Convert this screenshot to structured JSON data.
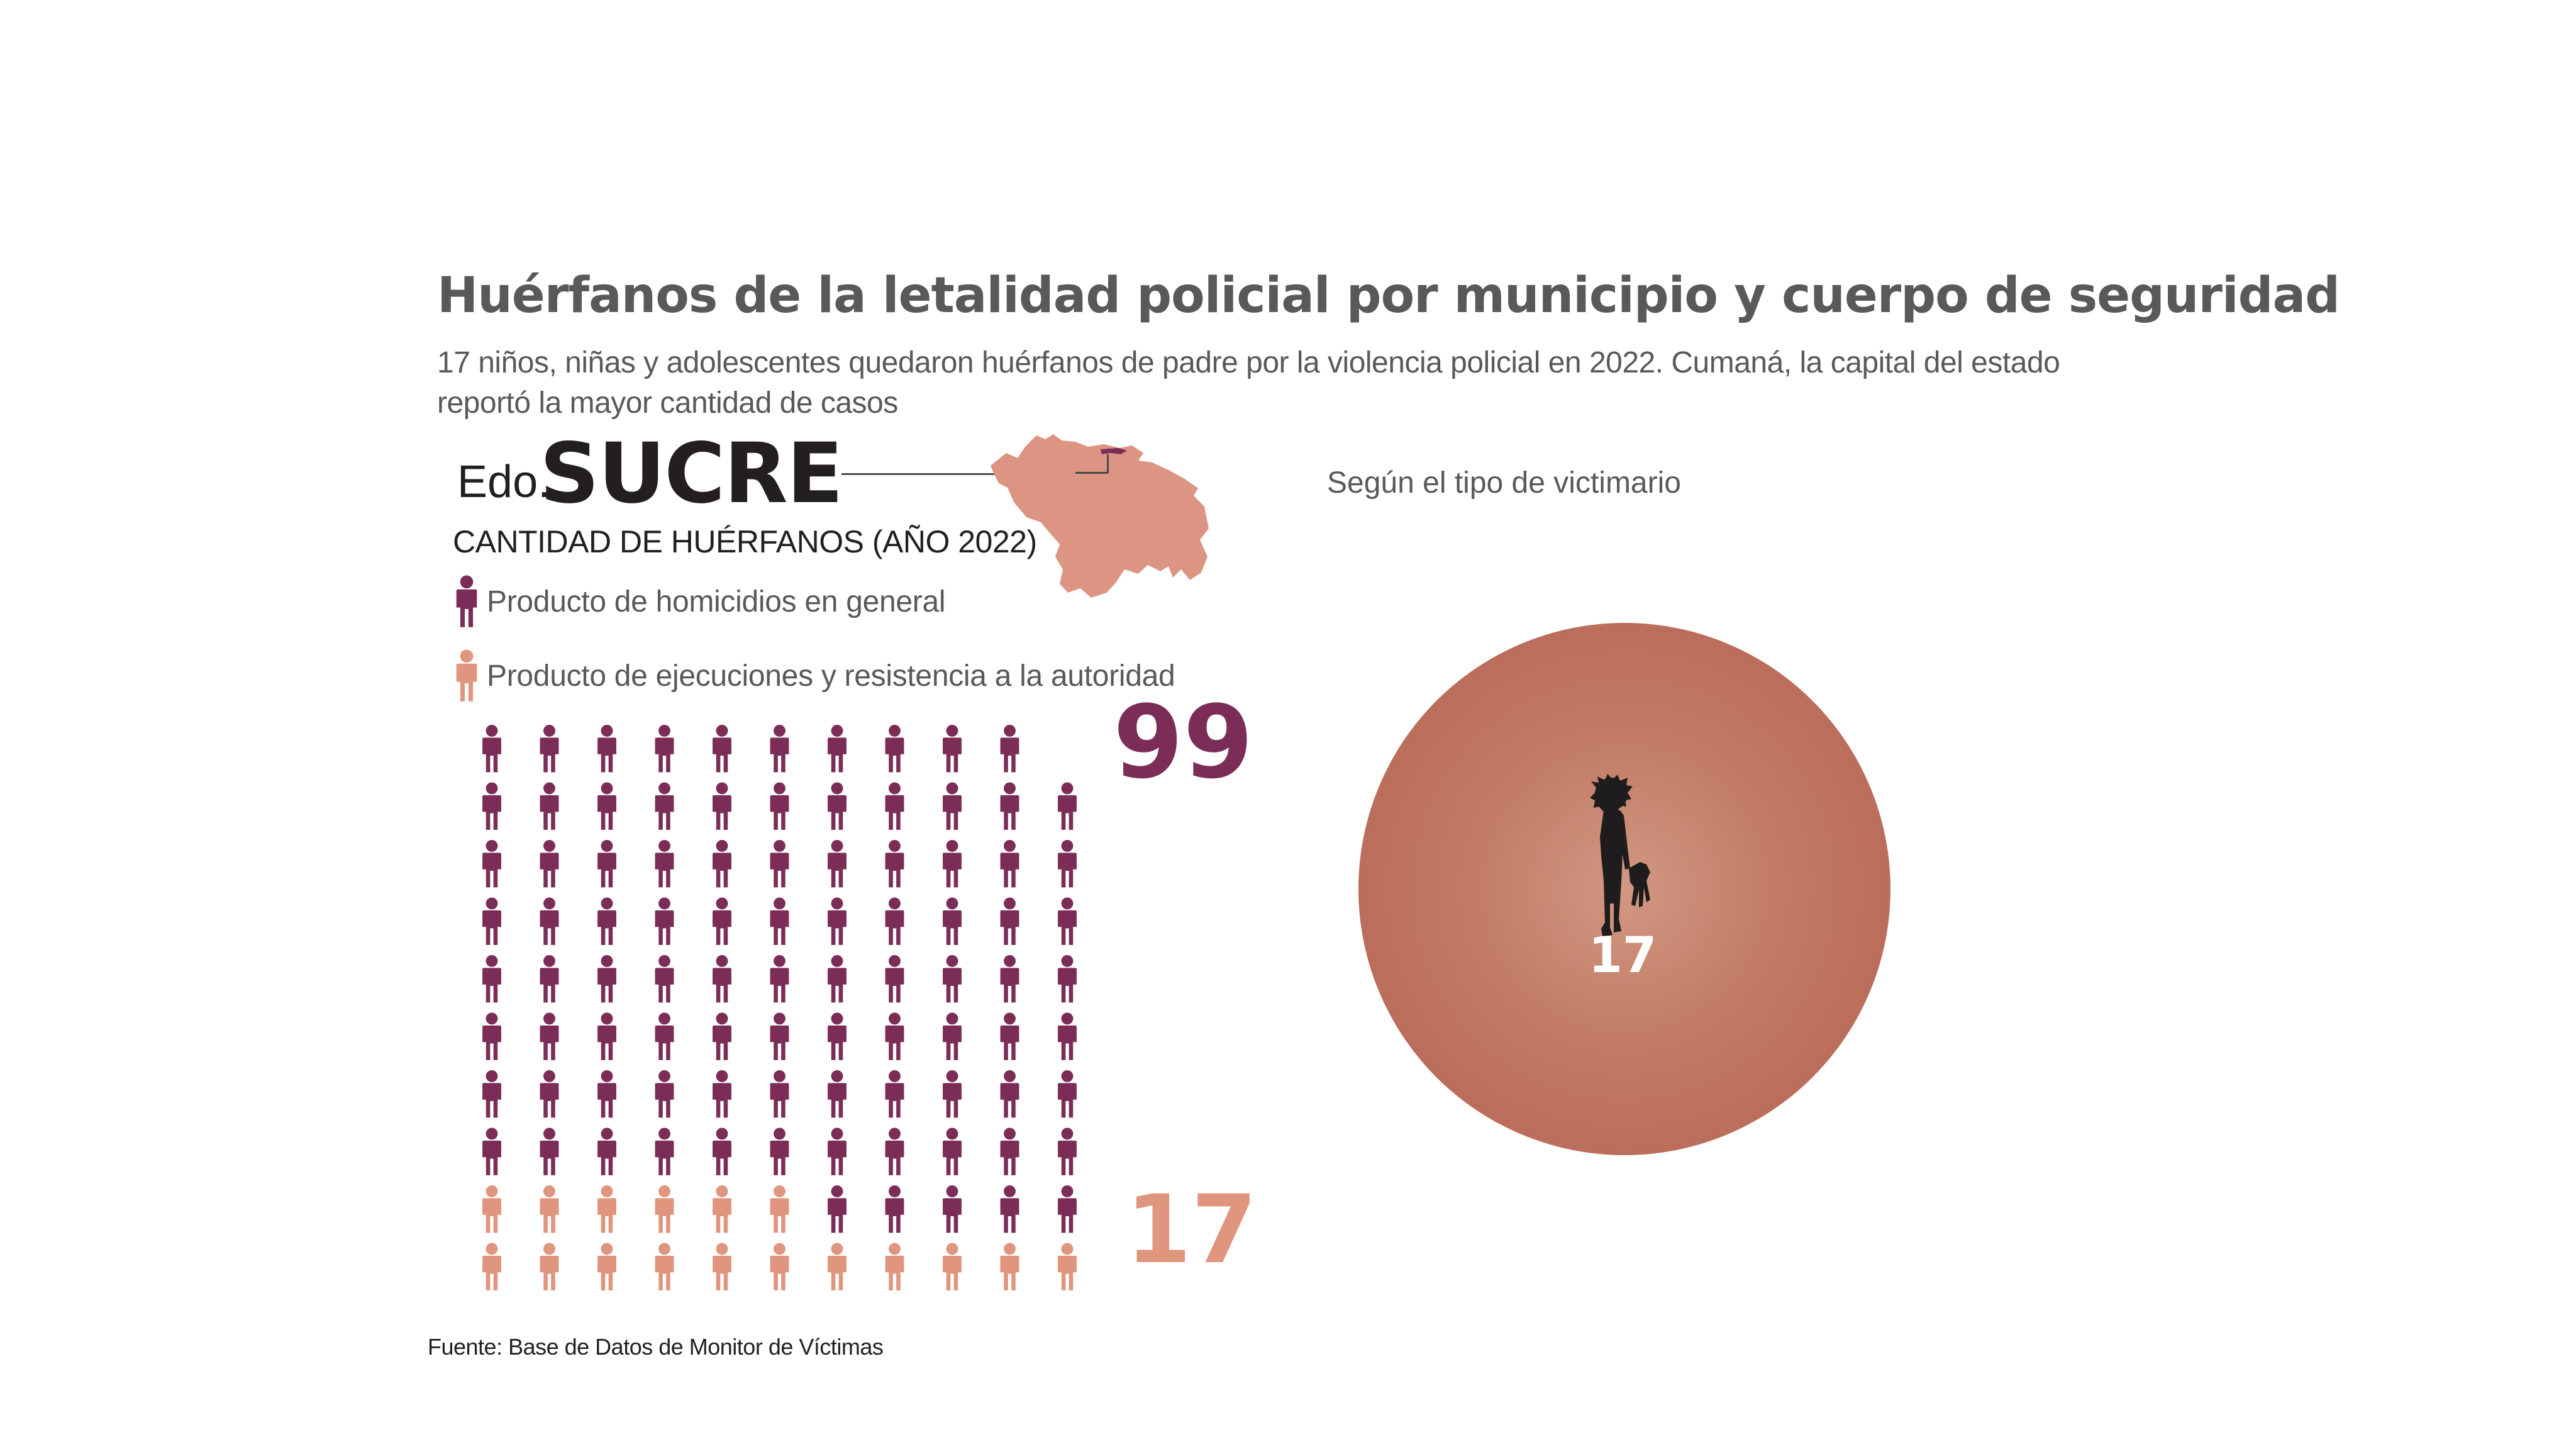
{
  "header": {
    "title": "Huérfanos de la letalidad policial por municipio y cuerpo de seguridad",
    "subtitle": "17 niños, niñas y adolescentes quedaron huérfanos de padre por la violencia policial en 2022. Cumaná, la capital del estado reportó la mayor cantidad de casos"
  },
  "state": {
    "prefix": "Edo.",
    "name": "SUCRE",
    "quantity_label": "CANTIDAD DE HUÉRFANOS (AÑO 2022)",
    "map_icon": "venezuela-map-icon"
  },
  "legend": {
    "general": "Producto de homicidios en general",
    "executions": "Producto de ejecuciones y resistencia a la autoridad"
  },
  "colors": {
    "general": "#7b2d57",
    "executions": "#e0957e",
    "bubble": "#b5604f",
    "text": "#58595b"
  },
  "victimizer": {
    "title": "Según el tipo de victimario",
    "value": "17",
    "icon": "child-holding-doll-icon"
  },
  "source": "Fuente: Base de Datos de Monitor de Víctimas",
  "chart_data": [
    {
      "type": "pictogram",
      "title": "CANTIDAD DE HUÉRFANOS (AÑO 2022)",
      "icon": "person-icon",
      "series": [
        {
          "name": "Producto de homicidios en general",
          "value": 99,
          "label": "99",
          "color": "#7b2d57"
        },
        {
          "name": "Producto de ejecuciones y resistencia a la autoridad",
          "value": 17,
          "label": "17",
          "color": "#e0957e"
        }
      ]
    },
    {
      "type": "bubble",
      "title": "Según el tipo de victimario",
      "values": [
        17
      ],
      "labels": [
        "17"
      ]
    }
  ]
}
